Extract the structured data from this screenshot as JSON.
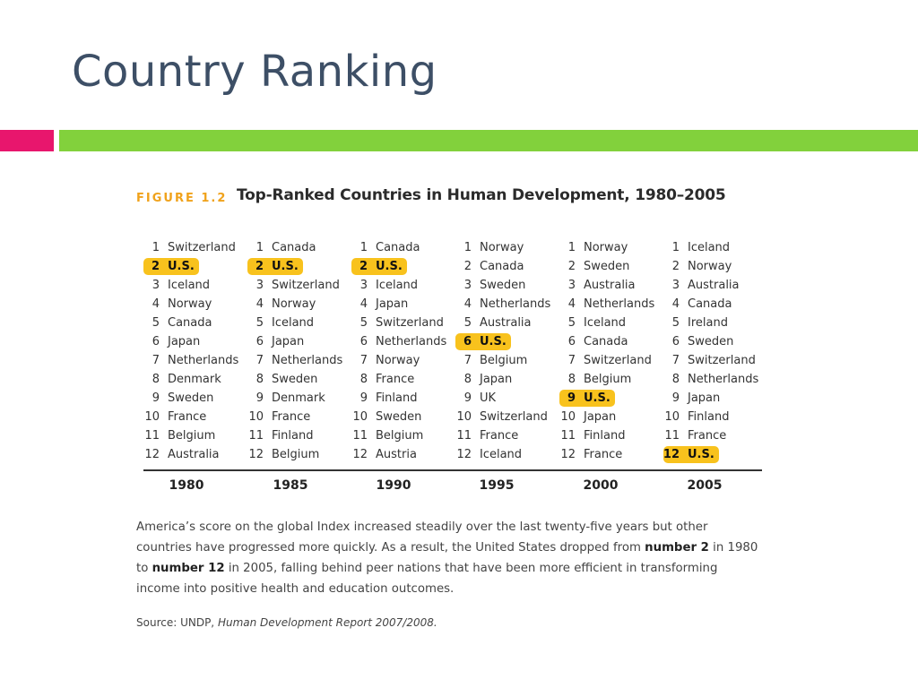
{
  "slide": {
    "title": "Country Ranking"
  },
  "figure": {
    "label": "FIGURE 1.2",
    "title": "Top-Ranked Countries in Human Development, 1980–2005",
    "columns": [
      {
        "year": "1980",
        "highlight": 1,
        "ranks": [
          {
            "n": "1",
            "c": "Switzerland"
          },
          {
            "n": "2",
            "c": "U.S."
          },
          {
            "n": "3",
            "c": "Iceland"
          },
          {
            "n": "4",
            "c": "Norway"
          },
          {
            "n": "5",
            "c": "Canada"
          },
          {
            "n": "6",
            "c": "Japan"
          },
          {
            "n": "7",
            "c": "Netherlands"
          },
          {
            "n": "8",
            "c": "Denmark"
          },
          {
            "n": "9",
            "c": "Sweden"
          },
          {
            "n": "10",
            "c": "France"
          },
          {
            "n": "11",
            "c": "Belgium"
          },
          {
            "n": "12",
            "c": "Australia"
          }
        ]
      },
      {
        "year": "1985",
        "highlight": 1,
        "ranks": [
          {
            "n": "1",
            "c": "Canada"
          },
          {
            "n": "2",
            "c": "U.S."
          },
          {
            "n": "3",
            "c": "Switzerland"
          },
          {
            "n": "4",
            "c": "Norway"
          },
          {
            "n": "5",
            "c": "Iceland"
          },
          {
            "n": "6",
            "c": "Japan"
          },
          {
            "n": "7",
            "c": "Netherlands"
          },
          {
            "n": "8",
            "c": "Sweden"
          },
          {
            "n": "9",
            "c": "Denmark"
          },
          {
            "n": "10",
            "c": "France"
          },
          {
            "n": "11",
            "c": "Finland"
          },
          {
            "n": "12",
            "c": "Belgium"
          }
        ]
      },
      {
        "year": "1990",
        "highlight": 1,
        "ranks": [
          {
            "n": "1",
            "c": "Canada"
          },
          {
            "n": "2",
            "c": "U.S."
          },
          {
            "n": "3",
            "c": "Iceland"
          },
          {
            "n": "4",
            "c": "Japan"
          },
          {
            "n": "5",
            "c": "Switzerland"
          },
          {
            "n": "6",
            "c": "Netherlands"
          },
          {
            "n": "7",
            "c": "Norway"
          },
          {
            "n": "8",
            "c": "France"
          },
          {
            "n": "9",
            "c": "Finland"
          },
          {
            "n": "10",
            "c": "Sweden"
          },
          {
            "n": "11",
            "c": "Belgium"
          },
          {
            "n": "12",
            "c": "Austria"
          }
        ]
      },
      {
        "year": "1995",
        "highlight": 5,
        "ranks": [
          {
            "n": "1",
            "c": "Norway"
          },
          {
            "n": "2",
            "c": "Canada"
          },
          {
            "n": "3",
            "c": "Sweden"
          },
          {
            "n": "4",
            "c": "Netherlands"
          },
          {
            "n": "5",
            "c": "Australia"
          },
          {
            "n": "6",
            "c": "U.S."
          },
          {
            "n": "7",
            "c": "Belgium"
          },
          {
            "n": "8",
            "c": "Japan"
          },
          {
            "n": "9",
            "c": "UK"
          },
          {
            "n": "10",
            "c": "Switzerland"
          },
          {
            "n": "11",
            "c": "France"
          },
          {
            "n": "12",
            "c": "Iceland"
          }
        ]
      },
      {
        "year": "2000",
        "highlight": 8,
        "ranks": [
          {
            "n": "1",
            "c": "Norway"
          },
          {
            "n": "2",
            "c": "Sweden"
          },
          {
            "n": "3",
            "c": "Australia"
          },
          {
            "n": "4",
            "c": "Netherlands"
          },
          {
            "n": "5",
            "c": "Iceland"
          },
          {
            "n": "6",
            "c": "Canada"
          },
          {
            "n": "7",
            "c": "Switzerland"
          },
          {
            "n": "8",
            "c": "Belgium"
          },
          {
            "n": "9",
            "c": "U.S."
          },
          {
            "n": "10",
            "c": "Japan"
          },
          {
            "n": "11",
            "c": "Finland"
          },
          {
            "n": "12",
            "c": "France"
          }
        ]
      },
      {
        "year": "2005",
        "highlight": 11,
        "ranks": [
          {
            "n": "1",
            "c": "Iceland"
          },
          {
            "n": "2",
            "c": "Norway"
          },
          {
            "n": "3",
            "c": "Australia"
          },
          {
            "n": "4",
            "c": "Canada"
          },
          {
            "n": "5",
            "c": "Ireland"
          },
          {
            "n": "6",
            "c": "Sweden"
          },
          {
            "n": "7",
            "c": "Switzerland"
          },
          {
            "n": "8",
            "c": "Netherlands"
          },
          {
            "n": "9",
            "c": "Japan"
          },
          {
            "n": "10",
            "c": "Finland"
          },
          {
            "n": "11",
            "c": "France"
          },
          {
            "n": "12",
            "c": "U.S."
          }
        ]
      }
    ],
    "caption": {
      "part1": "America’s score on the global Index increased steadily over the last twenty-five years but other countries have progressed more quickly. As a result, the United States dropped from ",
      "bold1": "number 2",
      "part2": " in 1980 to ",
      "bold2": "number 12",
      "part3": " in 2005, falling behind peer nations that have been more efficient in transforming income into positive health and education outcomes."
    },
    "source": {
      "prefix": "Source: UNDP, ",
      "title": "Human Development Report 2007/2008."
    }
  },
  "colors": {
    "pink": "#e8166d",
    "green": "#82d13c",
    "highlight": "#f8c21d",
    "figure_label": "#f0a21b"
  }
}
